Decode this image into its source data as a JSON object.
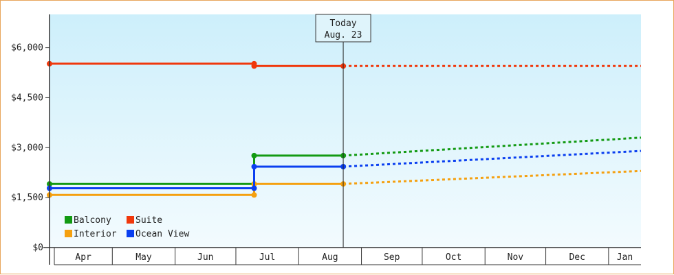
{
  "chart_data": {
    "type": "line",
    "title": "",
    "xlabel": "",
    "ylabel": "",
    "ylim": [
      0,
      7000
    ],
    "y_ticks": [
      {
        "value": 0,
        "label": "$0"
      },
      {
        "value": 1500,
        "label": "$1,500"
      },
      {
        "value": 3000,
        "label": "$3,000"
      },
      {
        "value": 4500,
        "label": "$4,500"
      },
      {
        "value": 6000,
        "label": "$6,000"
      }
    ],
    "x_range": [
      "2023-03-31",
      "2024-01-17"
    ],
    "x_months": [
      {
        "label": "Apr",
        "start": "2023-04-01",
        "end": "2023-05-01"
      },
      {
        "label": "May",
        "start": "2023-05-01",
        "end": "2023-06-01"
      },
      {
        "label": "Jun",
        "start": "2023-06-01",
        "end": "2023-07-01"
      },
      {
        "label": "Jul",
        "start": "2023-07-01",
        "end": "2023-08-01"
      },
      {
        "label": "Aug",
        "start": "2023-08-01",
        "end": "2023-09-01"
      },
      {
        "label": "Sep",
        "start": "2023-09-01",
        "end": "2023-10-01"
      },
      {
        "label": "Oct",
        "start": "2023-10-01",
        "end": "2023-11-01"
      },
      {
        "label": "Nov",
        "start": "2023-11-01",
        "end": "2023-12-01"
      },
      {
        "label": "Dec",
        "start": "2023-12-01",
        "end": "2024-01-01"
      },
      {
        "label": "Jan",
        "start": "2024-01-01",
        "end": "2024-02-01"
      }
    ],
    "grid": false,
    "background": {
      "top": "#cdeffb",
      "bottom": "#f3fbfe"
    },
    "today": {
      "line1": "Today",
      "line2": "Aug. 23",
      "date": "2023-08-23"
    },
    "legend_position": "bottom-left",
    "series": [
      {
        "name": "Balcony",
        "color": "#139a13",
        "points": [
          [
            "2023-03-31",
            1910
          ],
          [
            "2023-07-10",
            1910
          ],
          [
            "2023-07-10",
            2760
          ],
          [
            "2023-08-23",
            2760
          ]
        ],
        "markers": [
          [
            "2023-03-31",
            1910
          ],
          [
            "2023-07-10",
            1910
          ],
          [
            "2023-07-10",
            2760
          ],
          [
            "2023-08-23",
            2760
          ]
        ],
        "forecast": [
          [
            "2023-08-23",
            2760
          ],
          [
            "2024-01-17",
            3300
          ]
        ]
      },
      {
        "name": "Suite",
        "color": "#f0380c",
        "points": [
          [
            "2023-03-31",
            5520
          ],
          [
            "2023-07-10",
            5520
          ],
          [
            "2023-07-10",
            5450
          ],
          [
            "2023-08-23",
            5450
          ]
        ],
        "markers": [
          [
            "2023-03-31",
            5520
          ],
          [
            "2023-07-10",
            5520
          ],
          [
            "2023-07-10",
            5450
          ],
          [
            "2023-08-23",
            5450
          ]
        ],
        "forecast": [
          [
            "2023-08-23",
            5450
          ],
          [
            "2024-01-17",
            5450
          ]
        ]
      },
      {
        "name": "Interior",
        "color": "#f5a00f",
        "points": [
          [
            "2023-03-31",
            1580
          ],
          [
            "2023-07-10",
            1580
          ],
          [
            "2023-07-10",
            1910
          ],
          [
            "2023-08-23",
            1910
          ]
        ],
        "markers": [
          [
            "2023-03-31",
            1580
          ],
          [
            "2023-07-10",
            1580
          ],
          [
            "2023-07-10",
            1910
          ],
          [
            "2023-08-23",
            1910
          ]
        ],
        "forecast": [
          [
            "2023-08-23",
            1910
          ],
          [
            "2024-01-17",
            2300
          ]
        ]
      },
      {
        "name": "Ocean View",
        "color": "#0a3ff0",
        "points": [
          [
            "2023-03-31",
            1780
          ],
          [
            "2023-07-10",
            1780
          ],
          [
            "2023-07-10",
            2430
          ],
          [
            "2023-08-23",
            2430
          ]
        ],
        "markers": [
          [
            "2023-03-31",
            1780
          ],
          [
            "2023-07-10",
            1780
          ],
          [
            "2023-07-10",
            2430
          ],
          [
            "2023-08-23",
            2430
          ]
        ],
        "forecast": [
          [
            "2023-08-23",
            2430
          ],
          [
            "2024-01-17",
            2900
          ]
        ]
      }
    ]
  }
}
